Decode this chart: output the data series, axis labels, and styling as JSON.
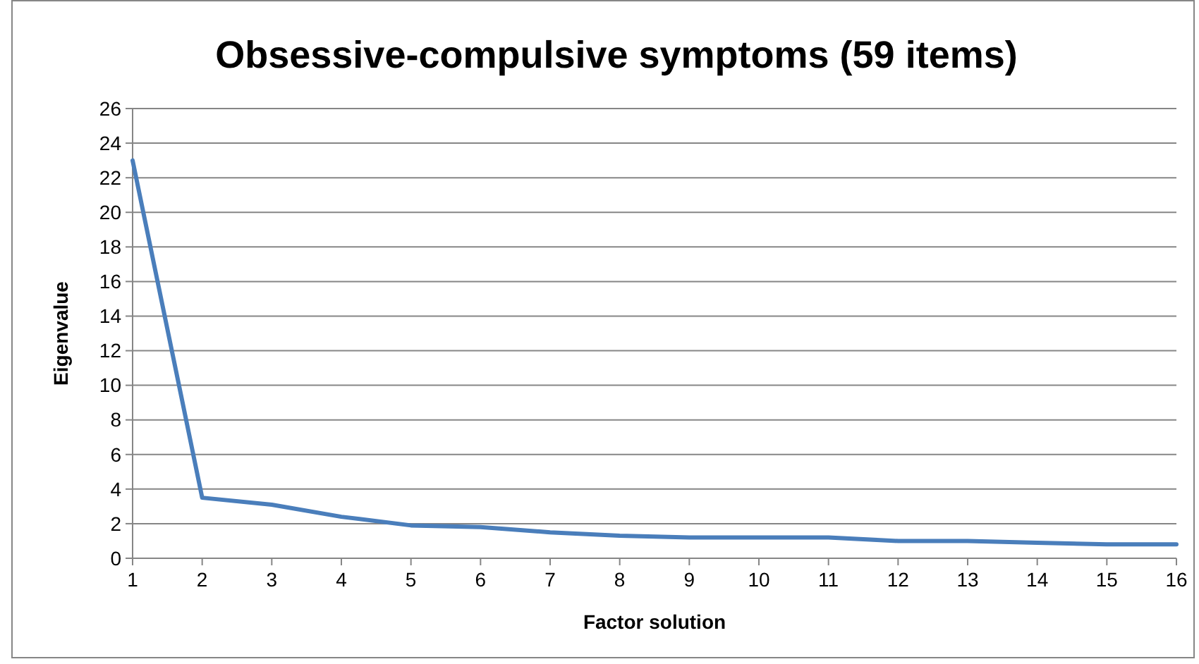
{
  "chart_data": {
    "type": "line",
    "title": "Obsessive-compulsive symptoms (59 items)",
    "xlabel": "Factor solution",
    "ylabel": "Eigenvalue",
    "x": [
      1,
      2,
      3,
      4,
      5,
      6,
      7,
      8,
      9,
      10,
      11,
      12,
      13,
      14,
      15,
      16
    ],
    "series": [
      {
        "color": "#4a7ebb",
        "values": [
          23,
          3.5,
          3.1,
          2.4,
          1.9,
          1.8,
          1.5,
          1.3,
          1.2,
          1.2,
          1.2,
          1.0,
          1.0,
          0.9,
          0.8,
          0.8
        ]
      }
    ],
    "xlim": [
      1,
      16
    ],
    "xticks": [
      1,
      2,
      3,
      4,
      5,
      6,
      7,
      8,
      9,
      10,
      11,
      12,
      13,
      14,
      15,
      16
    ],
    "ylim": [
      0,
      26
    ],
    "yticks": [
      0,
      2,
      4,
      6,
      8,
      10,
      12,
      14,
      16,
      18,
      20,
      22,
      24,
      26
    ],
    "grid": "y",
    "marker": "none",
    "line_style": "solid"
  }
}
